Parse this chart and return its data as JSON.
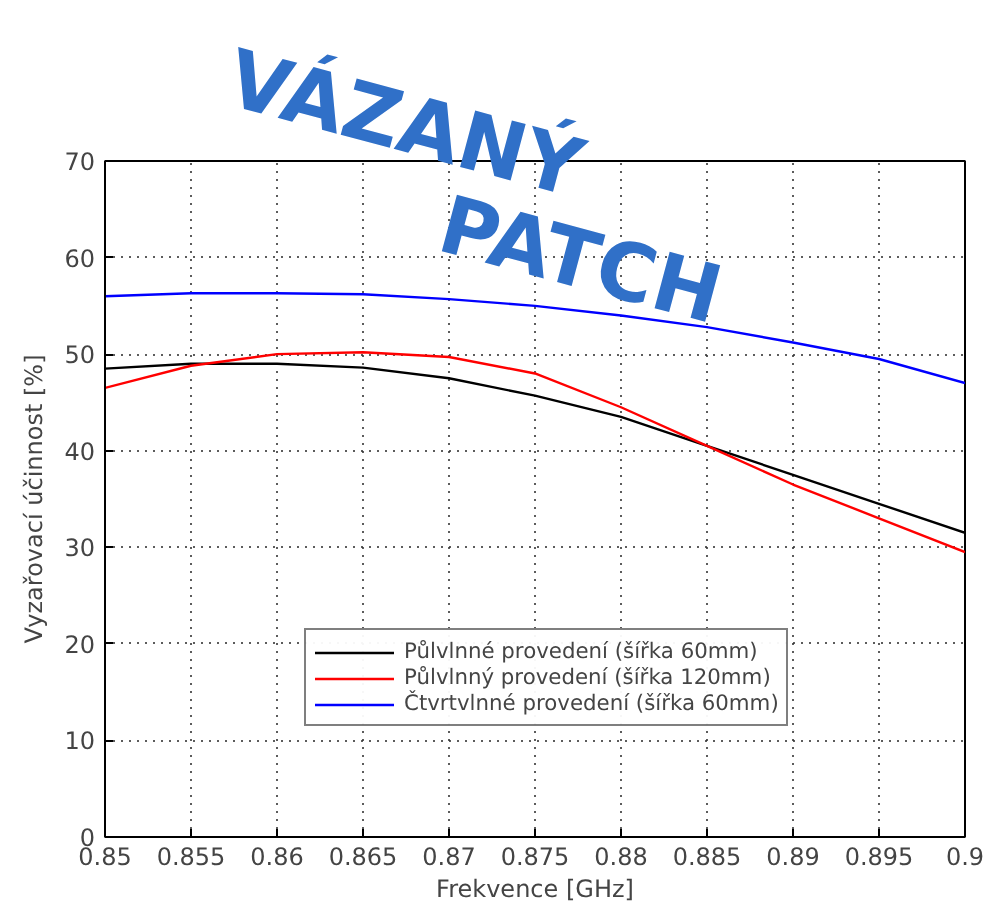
{
  "chart_data": {
    "type": "line",
    "annotations": [
      "VÁZANÝ",
      "PATCH"
    ],
    "xlabel": "Frekvence [GHz]",
    "ylabel": "Vyzařovací účinnost [%]",
    "x": [
      0.85,
      0.855,
      0.86,
      0.865,
      0.87,
      0.875,
      0.88,
      0.885,
      0.89,
      0.895,
      0.9
    ],
    "series": [
      {
        "name": "Půlvlnné provedení (šířka 60mm)",
        "color": "#000000",
        "values": [
          48.5,
          49,
          49,
          48.6,
          47.5,
          45.7,
          43.5,
          40.5,
          37.5,
          34.5,
          31.5
        ]
      },
      {
        "name": "Půlvlnný provedení (šířka 120mm)",
        "color": "#ff0000",
        "values": [
          46.5,
          48.8,
          50,
          50.2,
          49.7,
          48,
          44.5,
          40.5,
          36.5,
          33,
          29.5
        ]
      },
      {
        "name": "Čtvrtvlnné provedení (šířka 60mm)",
        "color": "#0000ff",
        "values": [
          56,
          56.3,
          56.3,
          56.2,
          55.7,
          55,
          54,
          52.8,
          51.2,
          49.5,
          47
        ]
      }
    ],
    "xlim": [
      0.85,
      0.9
    ],
    "xticks": [
      0.85,
      0.855,
      0.86,
      0.865,
      0.87,
      0.875,
      0.88,
      0.885,
      0.89,
      0.895,
      0.9
    ],
    "ylim": [
      0,
      70
    ],
    "yticks": [
      0,
      10,
      20,
      30,
      40,
      50,
      60,
      70
    ],
    "grid": true,
    "legend": "bottom",
    "line_style": "solid",
    "marker": "none"
  }
}
